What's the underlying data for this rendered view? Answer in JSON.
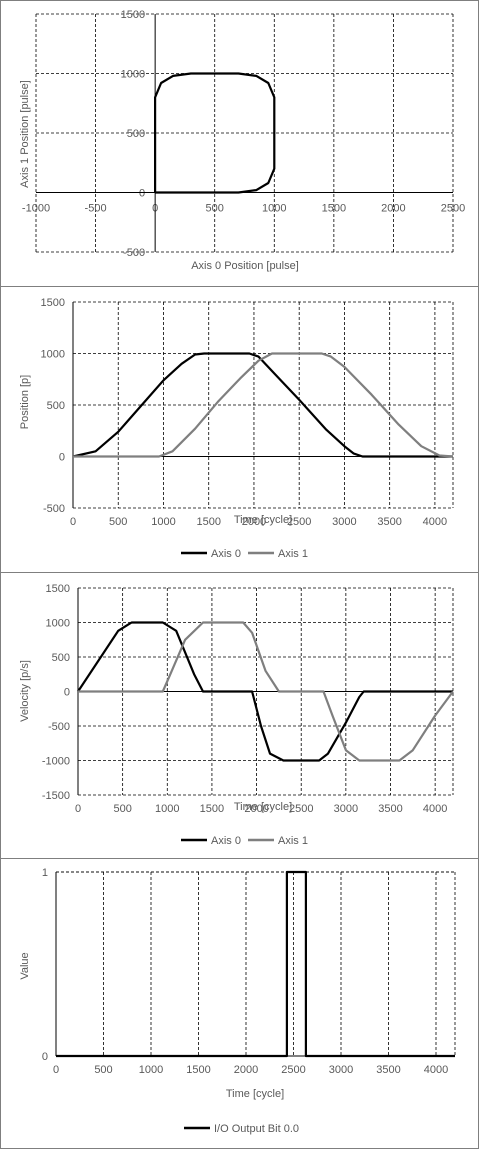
{
  "chart_data": [
    {
      "type": "line",
      "title": "",
      "xlabel": "Axis 0 Position [pulse]",
      "ylabel": "Axis 1 Position [pulse]",
      "xlim": [
        -1000,
        2500
      ],
      "ylim": [
        -500,
        1500
      ],
      "xticks": [
        -1000,
        -500,
        0,
        500,
        1000,
        1500,
        2000,
        2500
      ],
      "yticks": [
        -500,
        0,
        500,
        1000,
        1500
      ],
      "grid": true,
      "legend": "none",
      "series": [
        {
          "color": "#000000",
          "x": [
            0,
            700,
            850,
            950,
            1000,
            1000,
            1000,
            950,
            850,
            700,
            300,
            150,
            50,
            0,
            0,
            0
          ],
          "y": [
            0,
            0,
            20,
            80,
            200,
            500,
            800,
            920,
            980,
            1000,
            1000,
            980,
            920,
            800,
            500,
            0
          ]
        }
      ]
    },
    {
      "type": "line",
      "title": "",
      "xlabel": "Time [cycle]",
      "ylabel": "Position [p]",
      "xlim": [
        0,
        4200
      ],
      "ylim": [
        -500,
        1500
      ],
      "xticks": [
        0,
        500,
        1000,
        1500,
        2000,
        2500,
        3000,
        3500,
        4000
      ],
      "yticks": [
        -500,
        0,
        500,
        1000,
        1500
      ],
      "grid": true,
      "legend": "bottom",
      "series": [
        {
          "name": "Axis 0",
          "color": "#000000",
          "x": [
            0,
            250,
            500,
            750,
            1000,
            1200,
            1350,
            1450,
            1950,
            2050,
            2200,
            2500,
            2800,
            3000,
            3100,
            3200,
            4200
          ],
          "y": [
            0,
            50,
            240,
            490,
            740,
            900,
            990,
            1000,
            1000,
            970,
            830,
            550,
            260,
            100,
            30,
            0,
            0
          ]
        },
        {
          "name": "Axis 1",
          "color": "#7f7f7f",
          "x": [
            0,
            950,
            1100,
            1350,
            1600,
            1850,
            2050,
            2200,
            2750,
            2850,
            3000,
            3300,
            3600,
            3850,
            4050,
            4200
          ],
          "y": [
            0,
            0,
            50,
            270,
            530,
            760,
            930,
            1000,
            1000,
            970,
            870,
            600,
            310,
            100,
            10,
            0
          ]
        }
      ]
    },
    {
      "type": "line",
      "title": "",
      "xlabel": "Time [cycle]",
      "ylabel": "Velocity [p/s]",
      "xlim": [
        0,
        4200
      ],
      "ylim": [
        -1500,
        1500
      ],
      "xticks": [
        0,
        500,
        1000,
        1500,
        2000,
        2500,
        3000,
        3500,
        4000
      ],
      "yticks": [
        -1500,
        -1000,
        -500,
        0,
        500,
        1000,
        1500
      ],
      "grid": true,
      "legend": "bottom",
      "series": [
        {
          "name": "Axis 0",
          "color": "#000000",
          "x": [
            0,
            450,
            600,
            950,
            1100,
            1300,
            1400,
            1950,
            2050,
            2150,
            2300,
            2700,
            2800,
            3000,
            3150,
            3200,
            4200
          ],
          "y": [
            0,
            880,
            1000,
            1000,
            880,
            250,
            0,
            0,
            -500,
            -900,
            -1000,
            -1000,
            -900,
            -450,
            -80,
            0,
            0
          ]
        },
        {
          "name": "Axis 1",
          "color": "#7f7f7f",
          "x": [
            0,
            950,
            1050,
            1200,
            1400,
            1850,
            1950,
            2100,
            2250,
            2750,
            2850,
            3000,
            3150,
            3600,
            3750,
            4000,
            4200
          ],
          "y": [
            0,
            0,
            300,
            750,
            1000,
            1000,
            850,
            300,
            0,
            0,
            -350,
            -850,
            -1000,
            -1000,
            -850,
            -350,
            0
          ]
        }
      ]
    },
    {
      "type": "line",
      "title": "",
      "xlabel": "Time [cycle]",
      "ylabel": "Value",
      "xlim": [
        0,
        4200
      ],
      "ylim": [
        0,
        1
      ],
      "xticks": [
        0,
        500,
        1000,
        1500,
        2000,
        2500,
        3000,
        3500,
        4000
      ],
      "yticks": [
        0,
        1
      ],
      "grid": true,
      "legend": "bottom",
      "series": [
        {
          "name": "I/O Output Bit 0.0",
          "color": "#000000",
          "step": true,
          "x": [
            0,
            2430,
            2430,
            2630,
            2630,
            4200
          ],
          "y": [
            0,
            0,
            1,
            1,
            0,
            0
          ]
        }
      ]
    }
  ]
}
